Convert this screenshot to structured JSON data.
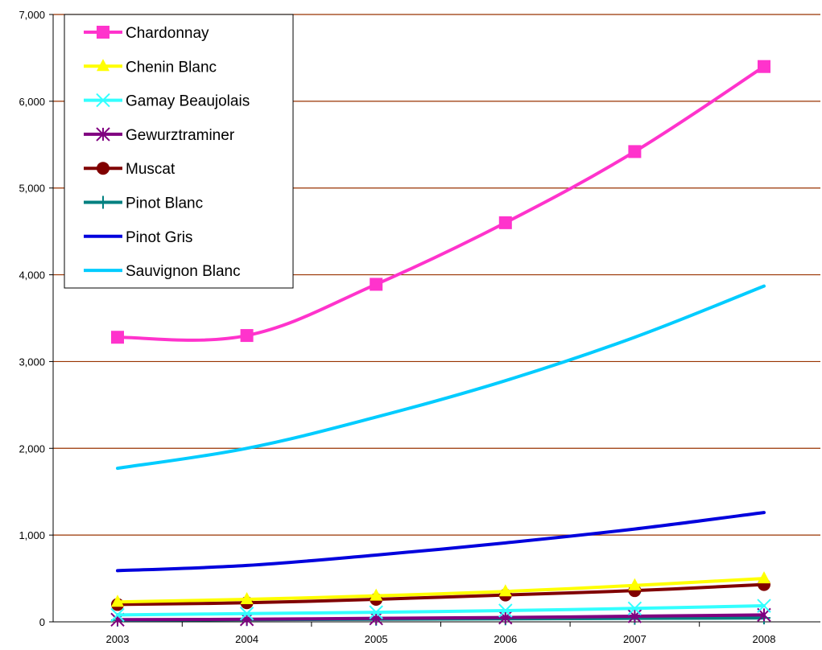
{
  "chart_data": {
    "type": "line",
    "title": "",
    "xlabel": "",
    "ylabel": "",
    "categories": [
      "2003",
      "2004",
      "2005",
      "2006",
      "2007",
      "2008"
    ],
    "ylim": [
      0,
      7000
    ],
    "y_ticks": [
      0,
      1000,
      2000,
      3000,
      4000,
      5000,
      6000,
      7000
    ],
    "y_tick_labels": [
      "0",
      "1,000",
      "2,000",
      "3,000",
      "4,000",
      "5,000",
      "6,000",
      "7,000"
    ],
    "grid": "horizontal",
    "gridline_color": "#993300",
    "smoothed": true,
    "legend_position": "top-left, inside plot",
    "series": [
      {
        "name": "Chardonnay",
        "color": "#ff33cc",
        "marker": "square",
        "values": [
          3280,
          3300,
          3890,
          4600,
          5420,
          6400
        ]
      },
      {
        "name": "Chenin Blanc",
        "color": "#ffff00",
        "marker": "triangle",
        "values": [
          230,
          260,
          300,
          350,
          420,
          500
        ]
      },
      {
        "name": "Gamay Beaujolais",
        "color": "#33ffff",
        "marker": "x",
        "values": [
          80,
          95,
          110,
          130,
          155,
          185
        ]
      },
      {
        "name": "Gewurztraminer",
        "color": "#800080",
        "marker": "asterisk",
        "values": [
          25,
          30,
          40,
          50,
          65,
          80
        ]
      },
      {
        "name": "Muscat",
        "color": "#800000",
        "marker": "circle",
        "values": [
          200,
          220,
          260,
          310,
          360,
          430
        ]
      },
      {
        "name": "Pinot Blanc",
        "color": "#008080",
        "marker": "plus",
        "values": [
          20,
          25,
          30,
          35,
          40,
          45
        ]
      },
      {
        "name": "Pinot Gris",
        "color": "#0000dd",
        "marker": "none",
        "values": [
          590,
          650,
          770,
          910,
          1070,
          1260
        ]
      },
      {
        "name": "Sauvignon Blanc",
        "color": "#00ccff",
        "marker": "none",
        "values": [
          1770,
          2000,
          2360,
          2780,
          3280,
          3870
        ]
      }
    ]
  }
}
